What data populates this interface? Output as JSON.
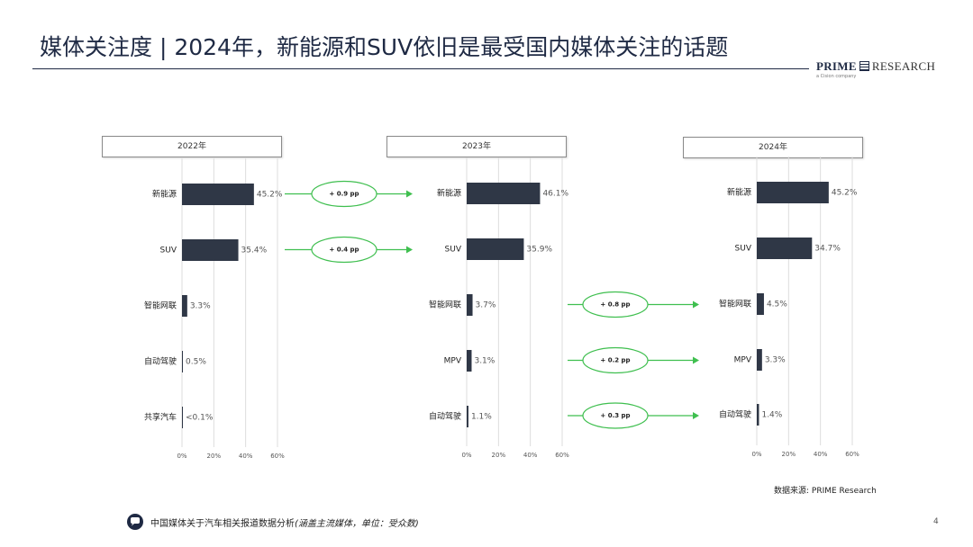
{
  "slide": {
    "title": "媒体关注度 | 2024年，新能源和SUV依旧是最受国内媒体关注的话题",
    "source": "数据来源: PRIME Research",
    "footer_main": "中国媒体关于汽车相关报道数据分析",
    "footer_note": "(涵盖主流媒体，单位：受众数)",
    "page_number": "4"
  },
  "logo": {
    "brand": "PRIME",
    "brand2": "RESEARCH",
    "tagline": "a Cision company"
  },
  "colors": {
    "bar": "#2f3746",
    "arrow": "#3fbf4f",
    "grid": "#dddddd",
    "text": "#333333"
  },
  "chart_data": [
    {
      "type": "bar",
      "orientation": "horizontal",
      "title": "2022年",
      "categories": [
        "新能源",
        "SUV",
        "智能网联",
        "自动驾驶",
        "共享汽车"
      ],
      "values": [
        45.2,
        35.4,
        3.3,
        0.5,
        0.05
      ],
      "labels": [
        "45.2%",
        "35.4%",
        "3.3%",
        "0.5%",
        "<0.1%"
      ],
      "xticks": [
        "0%",
        "20%",
        "40%",
        "60%"
      ],
      "xlim": [
        0,
        60
      ],
      "grid": true
    },
    {
      "type": "bar",
      "orientation": "horizontal",
      "title": "2023年",
      "categories": [
        "新能源",
        "SUV",
        "智能网联",
        "MPV",
        "自动驾驶"
      ],
      "values": [
        46.1,
        35.9,
        3.7,
        3.1,
        1.1
      ],
      "labels": [
        "46.1%",
        "35.9%",
        "3.7%",
        "3.1%",
        "1.1%"
      ],
      "xticks": [
        "0%",
        "20%",
        "40%",
        "60%"
      ],
      "xlim": [
        0,
        60
      ],
      "grid": true
    },
    {
      "type": "bar",
      "orientation": "horizontal",
      "title": "2024年",
      "categories": [
        "新能源",
        "SUV",
        "智能网联",
        "MPV",
        "自动驾驶"
      ],
      "values": [
        45.2,
        34.7,
        4.5,
        3.3,
        1.4
      ],
      "labels": [
        "45.2%",
        "34.7%",
        "4.5%",
        "3.3%",
        "1.4%"
      ],
      "xticks": [
        "0%",
        "20%",
        "40%",
        "60%"
      ],
      "xlim": [
        0,
        60
      ],
      "grid": true
    }
  ],
  "changes": [
    {
      "from_chart": 0,
      "to_chart": 1,
      "row": 0,
      "label": "+ 0.9 pp"
    },
    {
      "from_chart": 0,
      "to_chart": 1,
      "row": 1,
      "label": "+ 0.4 pp"
    },
    {
      "from_chart": 1,
      "to_chart": 2,
      "row": 2,
      "label": "+ 0.8 pp"
    },
    {
      "from_chart": 1,
      "to_chart": 2,
      "row": 3,
      "label": "+ 0.2 pp"
    },
    {
      "from_chart": 1,
      "to_chart": 2,
      "row": 4,
      "label": "+ 0.3 pp"
    }
  ]
}
